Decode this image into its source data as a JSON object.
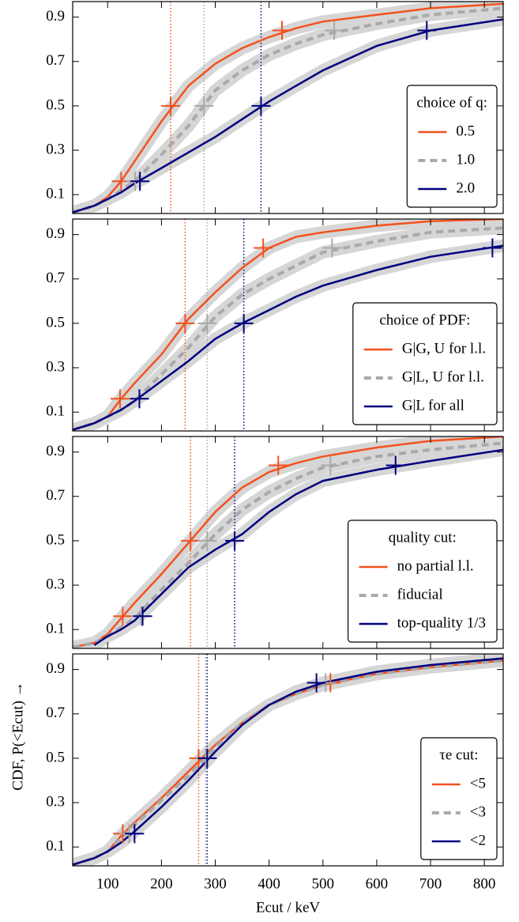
{
  "chart_data": [
    {
      "type": "line",
      "xlim": [
        35,
        835
      ],
      "ylim": [
        0.015,
        0.97
      ],
      "xticks": [
        100,
        200,
        300,
        400,
        500,
        600,
        700,
        800
      ],
      "yticks": [
        0.1,
        0.3,
        0.5,
        0.7,
        0.9
      ],
      "legend_title": "choice of q:",
      "legend_position": "lower right",
      "quantile_levels": [
        0.16,
        0.5,
        0.84
      ],
      "x": [
        35,
        75,
        100,
        125,
        150,
        200,
        250,
        300,
        350,
        400,
        450,
        500,
        600,
        700,
        835
      ],
      "series": [
        {
          "name": "0.5",
          "color": "#f4511e",
          "linestyle": "solid",
          "values": [
            0.02,
            0.05,
            0.09,
            0.16,
            0.25,
            0.43,
            0.59,
            0.69,
            0.76,
            0.81,
            0.85,
            0.88,
            0.91,
            0.94,
            0.96
          ],
          "quantiles": [
            125,
            217,
            424
          ]
        },
        {
          "name": "1.0",
          "color": "#a9a9a9",
          "linestyle": "dashed",
          "values": [
            0.02,
            0.05,
            0.08,
            0.12,
            0.16,
            0.28,
            0.41,
            0.57,
            0.66,
            0.73,
            0.78,
            0.82,
            0.87,
            0.91,
            0.94
          ],
          "quantiles": [
            151,
            279,
            521
          ]
        },
        {
          "name": "2.0",
          "color": "#000080",
          "linestyle": "solid",
          "values": [
            0.02,
            0.05,
            0.08,
            0.11,
            0.15,
            0.22,
            0.29,
            0.36,
            0.44,
            0.52,
            0.59,
            0.66,
            0.77,
            0.84,
            0.89
          ],
          "quantiles": [
            160,
            385,
            693
          ]
        }
      ]
    },
    {
      "type": "line",
      "xlim": [
        35,
        835
      ],
      "ylim": [
        0.015,
        0.97
      ],
      "xticks": [
        100,
        200,
        300,
        400,
        500,
        600,
        700,
        800
      ],
      "yticks": [
        0.1,
        0.3,
        0.5,
        0.7,
        0.9
      ],
      "legend_title": "choice of PDF:",
      "legend_position": "lower right",
      "quantile_levels": [
        0.16,
        0.5,
        0.84
      ],
      "x": [
        35,
        75,
        100,
        125,
        150,
        200,
        250,
        300,
        350,
        400,
        450,
        500,
        600,
        700,
        835
      ],
      "series": [
        {
          "name": "G|G, U for l.l.",
          "color": "#f4511e",
          "linestyle": "solid",
          "values": [
            0.02,
            0.05,
            0.08,
            0.16,
            0.23,
            0.36,
            0.52,
            0.64,
            0.75,
            0.84,
            0.89,
            0.91,
            0.94,
            0.96,
            0.97
          ],
          "quantiles": [
            123,
            244,
            389
          ]
        },
        {
          "name": "G|L, U for l.l.",
          "color": "#a9a9a9",
          "linestyle": "dashed",
          "values": [
            0.02,
            0.05,
            0.08,
            0.11,
            0.15,
            0.27,
            0.39,
            0.53,
            0.63,
            0.7,
            0.76,
            0.82,
            0.87,
            0.91,
            0.93
          ],
          "quantiles": [
            159,
            285,
            517
          ]
        },
        {
          "name": "G|L for all",
          "color": "#000080",
          "linestyle": "solid",
          "values": [
            0.02,
            0.05,
            0.08,
            0.11,
            0.15,
            0.24,
            0.33,
            0.43,
            0.5,
            0.56,
            0.62,
            0.67,
            0.74,
            0.8,
            0.85
          ],
          "quantiles": [
            159,
            353,
            815
          ]
        }
      ]
    },
    {
      "type": "line",
      "xlim": [
        35,
        835
      ],
      "ylim": [
        0.015,
        0.97
      ],
      "xticks": [
        100,
        200,
        300,
        400,
        500,
        600,
        700,
        800
      ],
      "yticks": [
        0.1,
        0.3,
        0.5,
        0.7,
        0.9
      ],
      "legend_title": "quality cut:",
      "legend_position": "lower right",
      "quantile_levels": [
        0.16,
        0.5,
        0.84
      ],
      "x": [
        35,
        75,
        100,
        125,
        150,
        200,
        250,
        300,
        350,
        400,
        450,
        500,
        600,
        700,
        835
      ],
      "series": [
        {
          "name": "no partial l.l.",
          "color": "#f4511e",
          "linestyle": "solid",
          "values": [
            0.02,
            0.04,
            0.08,
            0.15,
            0.22,
            0.35,
            0.49,
            0.63,
            0.74,
            0.81,
            0.85,
            0.88,
            0.92,
            0.95,
            0.97
          ],
          "quantiles": [
            128,
            254,
            417
          ]
        },
        {
          "name": "fiducial",
          "color": "#a9a9a9",
          "linestyle": "dashed",
          "values": [
            0.02,
            0.04,
            0.07,
            0.11,
            0.15,
            0.28,
            0.4,
            0.53,
            0.64,
            0.72,
            0.78,
            0.83,
            0.88,
            0.91,
            0.94
          ],
          "quantiles": [
            162,
            285,
            514
          ]
        },
        {
          "name": "top-quality 1/3",
          "color": "#000080",
          "linestyle": "solid",
          "values": [
            null,
            0.03,
            0.07,
            0.1,
            0.14,
            0.26,
            0.38,
            0.46,
            0.53,
            0.63,
            0.71,
            0.77,
            0.82,
            0.86,
            0.91
          ],
          "quantiles": [
            165,
            336,
            635
          ]
        }
      ]
    },
    {
      "type": "line",
      "xlim": [
        35,
        835
      ],
      "ylim": [
        0.015,
        0.97
      ],
      "xticks": [
        100,
        200,
        300,
        400,
        500,
        600,
        700,
        800
      ],
      "yticks": [
        0.1,
        0.3,
        0.5,
        0.7,
        0.9
      ],
      "xlabel": "Ecut / keV",
      "ylabel": "CDF, P(<Ecut) →",
      "legend_title": "τe cut:",
      "legend_position": "lower right",
      "quantile_levels": [
        0.16,
        0.5,
        0.84
      ],
      "x": [
        35,
        75,
        100,
        125,
        150,
        200,
        250,
        300,
        350,
        400,
        450,
        500,
        600,
        700,
        835
      ],
      "series": [
        {
          "name": "<5",
          "color": "#f4511e",
          "linestyle": "solid",
          "values": [
            0.02,
            0.05,
            0.08,
            0.15,
            0.21,
            0.32,
            0.44,
            0.56,
            0.66,
            0.74,
            0.79,
            0.83,
            0.88,
            0.91,
            0.94
          ],
          "quantiles": [
            128,
            269,
            514
          ]
        },
        {
          "name": "<3",
          "color": "#a9a9a9",
          "linestyle": "dashed",
          "values": [
            0.02,
            0.05,
            0.08,
            0.14,
            0.2,
            0.31,
            0.42,
            0.55,
            0.66,
            0.74,
            0.79,
            0.83,
            0.88,
            0.91,
            0.94
          ],
          "quantiles": [
            140,
            282,
            505
          ]
        },
        {
          "name": "<2",
          "color": "#000080",
          "linestyle": "solid",
          "values": [
            0.02,
            0.05,
            0.08,
            0.12,
            0.17,
            0.28,
            0.4,
            0.53,
            0.65,
            0.74,
            0.8,
            0.84,
            0.89,
            0.92,
            0.95
          ],
          "quantiles": [
            150,
            285,
            488
          ]
        }
      ]
    }
  ]
}
